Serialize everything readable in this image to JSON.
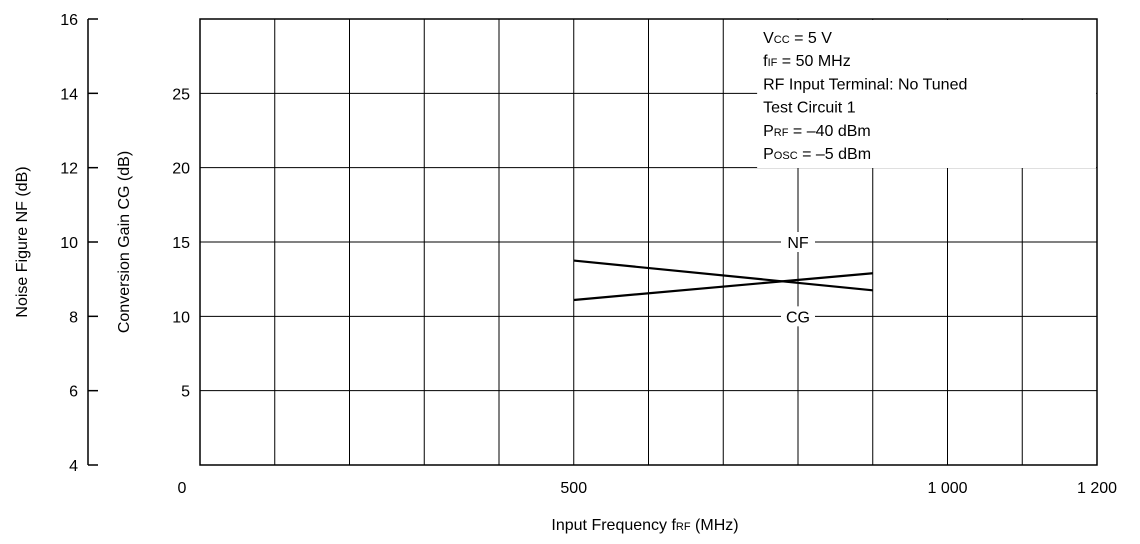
{
  "chart_data": {
    "type": "line",
    "x_axis": {
      "label_main": "Input Frequency  f",
      "label_sub": "RF",
      "label_unit": " (MHz)",
      "range": [
        0,
        1200
      ],
      "ticks": [
        0,
        500,
        1000,
        1200
      ],
      "tick_labels": [
        "0",
        "500",
        "1 000",
        "1 200"
      ],
      "grid_step": 100
    },
    "y_axis_nf": {
      "label": "Noise Figure  NF (dB)",
      "range": [
        4,
        16
      ],
      "ticks": [
        4,
        6,
        8,
        10,
        12,
        14,
        16
      ],
      "tick_labels": [
        "4",
        "6",
        "8",
        "10",
        "12",
        "14",
        "16"
      ]
    },
    "y_axis_cg": {
      "label": "Conversion Gain  CG (dB)",
      "range": [
        0,
        30
      ],
      "ticks": [
        5,
        10,
        15,
        20,
        25
      ],
      "tick_labels": [
        "5",
        "10",
        "15",
        "20",
        "25"
      ]
    },
    "grid": true,
    "series": [
      {
        "name": "NF",
        "axis": "nf",
        "x": [
          500,
          900
        ],
        "y": [
          9.5,
          8.7
        ],
        "label_at": 800
      },
      {
        "name": "CG",
        "axis": "cg",
        "x": [
          500,
          900
        ],
        "y": [
          11.1,
          12.9
        ],
        "label_at": 800
      }
    ],
    "conditions": [
      {
        "main": "V",
        "sub": "CC",
        "rest": " = 5 V"
      },
      {
        "main": "f",
        "sub": "IF",
        "rest": " = 50 MHz"
      },
      {
        "main": "RF Input Terminal:  No Tuned",
        "sub": "",
        "rest": ""
      },
      {
        "main": "Test Circuit 1",
        "sub": "",
        "rest": ""
      },
      {
        "main": "P",
        "sub": "RF",
        "rest": " = –40 dBm"
      },
      {
        "main": "P",
        "sub": "OSC",
        "rest": " = –5 dBm"
      }
    ],
    "legend_placement": "top-right"
  }
}
